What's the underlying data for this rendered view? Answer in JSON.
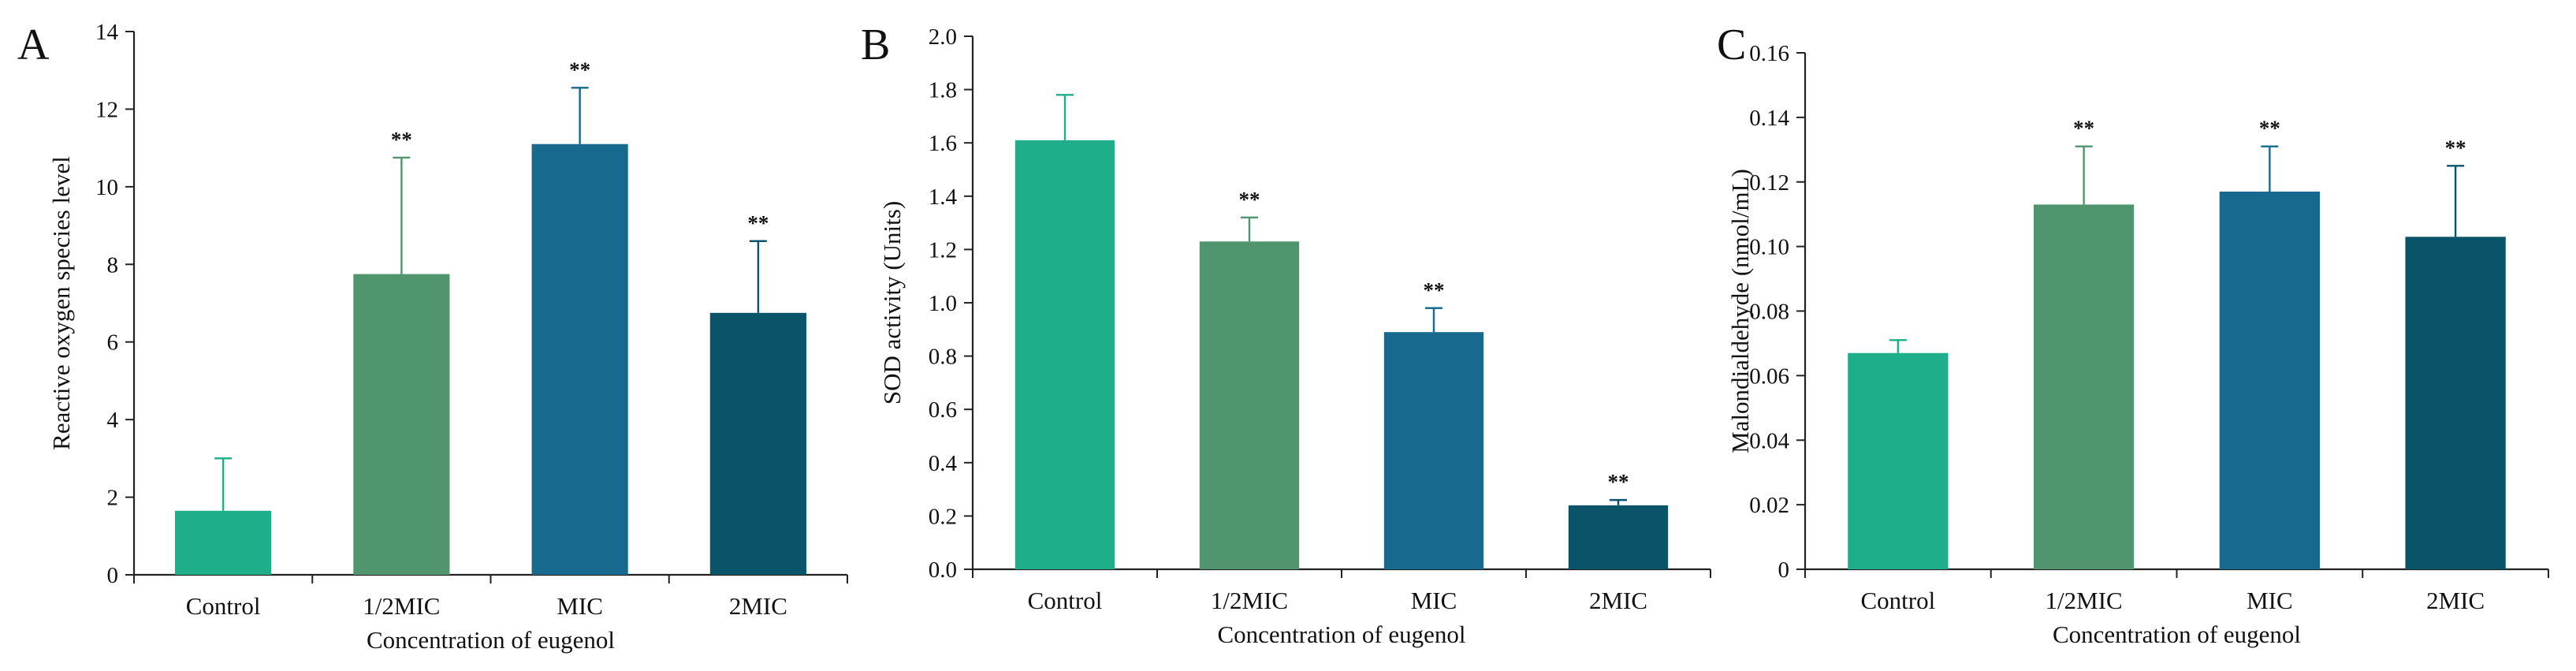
{
  "figure": {
    "xlabel": "Concentration of eugenol",
    "categories": [
      "Control",
      "1/2MIC",
      "MIC",
      "2MIC"
    ],
    "colors": [
      "#1EAE8A",
      "#51956F",
      "#17698D",
      "#0A546A"
    ]
  },
  "chart_data": [
    {
      "type": "bar",
      "panel": "A",
      "title": "",
      "categories": [
        "Control",
        "1/2MIC",
        "MIC",
        "2MIC"
      ],
      "values": [
        1.65,
        7.75,
        11.1,
        6.75
      ],
      "errors": [
        1.35,
        3.0,
        1.45,
        1.85
      ],
      "significance": [
        "",
        "**",
        "**",
        "**"
      ],
      "xlabel": "Concentration of eugenol",
      "ylabel": "Reactive oxygen species level",
      "ylim": [
        0,
        14
      ],
      "yticks": [
        "0",
        "2",
        "4",
        "6",
        "8",
        "10",
        "12",
        "14"
      ]
    },
    {
      "type": "bar",
      "panel": "B",
      "title": "",
      "categories": [
        "Control",
        "1/2MIC",
        "MIC",
        "2MIC"
      ],
      "values": [
        1.61,
        1.23,
        0.89,
        0.24
      ],
      "errors": [
        0.17,
        0.09,
        0.09,
        0.02
      ],
      "significance": [
        "",
        "**",
        "**",
        "**"
      ],
      "xlabel": "Concentration of eugenol",
      "ylabel": "SOD activity (Units)",
      "ylim": [
        0,
        2.0
      ],
      "yticks": [
        "0.0",
        "0.2",
        "0.4",
        "0.6",
        "0.8",
        "1.0",
        "1.2",
        "1.4",
        "1.6",
        "1.8",
        "2.0"
      ]
    },
    {
      "type": "bar",
      "panel": "C",
      "title": "",
      "categories": [
        "Control",
        "1/2MIC",
        "MIC",
        "2MIC"
      ],
      "values": [
        0.067,
        0.113,
        0.117,
        0.103
      ],
      "errors": [
        0.004,
        0.018,
        0.014,
        0.022
      ],
      "significance": [
        "",
        "**",
        "**",
        "**"
      ],
      "xlabel": "Concentration of eugenol",
      "ylabel": "Malondialdehyde (nmol/mL)",
      "ylim": [
        0,
        0.16
      ],
      "yticks": [
        "0",
        "0.02",
        "0.04",
        "0.06",
        "0.08",
        "0.10",
        "0.12",
        "0.14",
        "0.16"
      ]
    }
  ]
}
